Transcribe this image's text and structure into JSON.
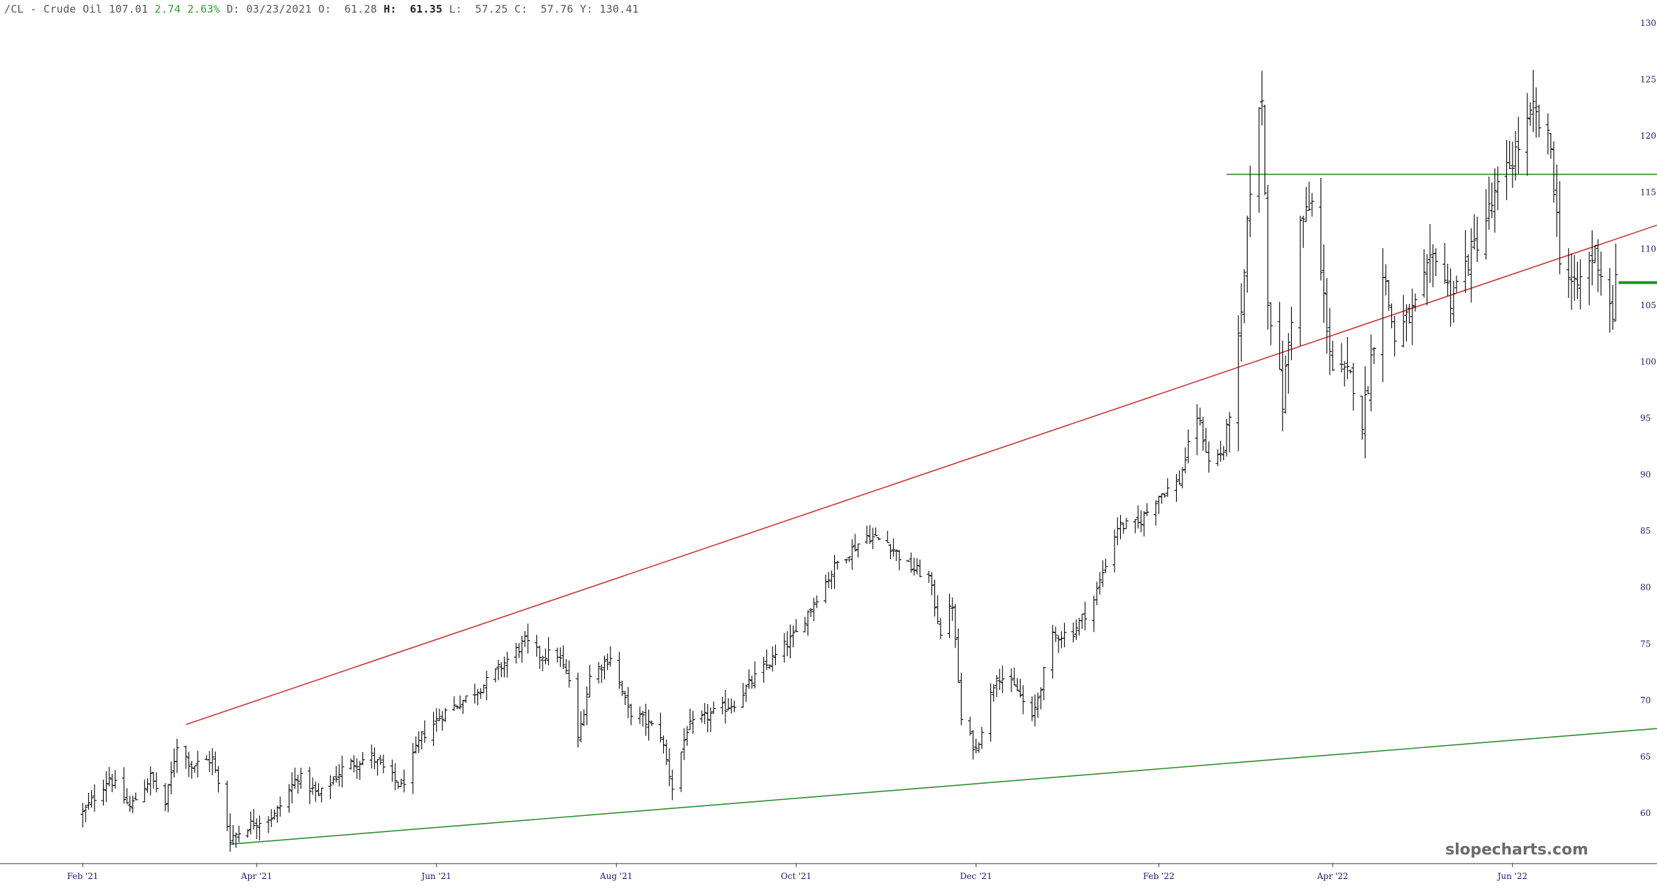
{
  "header": {
    "symbol": "/CL - Crude Oil",
    "last": "107.01",
    "change": "2.74",
    "change_pct": "2.63%",
    "date_label": "D:",
    "date": "03/23/2021",
    "open_label": "O:",
    "open": "61.28",
    "high_label": "H:",
    "high": "61.35",
    "low_label": "L:",
    "low": "57.25",
    "close_label": "C:",
    "close": "57.76",
    "y_label": "Y:",
    "y_value": "130.41"
  },
  "watermark": "slopecharts.com",
  "colors": {
    "bars": "#000000",
    "upper_trendline": "#cc3333",
    "lower_trendline": "#2e8b2e",
    "resistance_line": "#2e8b2e",
    "current_price_marker": "#1f8f1f",
    "axis_text": "#1a1a6e",
    "change_positive": "#2e9e2e"
  },
  "chart_data": {
    "type": "ohlc",
    "grid": false,
    "y_axis": {
      "position": "right",
      "ylim": [
        57.2,
        131.5
      ],
      "ticks": [
        60,
        65,
        70,
        75,
        80,
        85,
        90,
        95,
        100,
        105,
        110,
        115,
        120,
        125,
        130
      ]
    },
    "x_axis": {
      "tick_labels": [
        "Feb '21",
        "Apr '21",
        "Jun '21",
        "Aug '21",
        "Oct '21",
        "Dec '21",
        "Feb '22",
        "Apr '22",
        "Jun '22"
      ],
      "tick_dates": [
        "2021-02-01",
        "2021-04-01",
        "2021-06-01",
        "2021-08-01",
        "2021-10-01",
        "2021-12-01",
        "2022-02-01",
        "2022-04-01",
        "2022-06-01"
      ],
      "range": [
        "2021-02-01",
        "2022-07-20"
      ]
    },
    "price_path": [
      [
        "2021-02-01",
        60.0
      ],
      [
        "2021-02-10",
        63.2
      ],
      [
        "2021-02-17",
        60.5
      ],
      [
        "2021-02-24",
        63.2
      ],
      [
        "2021-03-01",
        60.8
      ],
      [
        "2021-03-05",
        66.1
      ],
      [
        "2021-03-10",
        64.2
      ],
      [
        "2021-03-17",
        64.8
      ],
      [
        "2021-03-23",
        57.8
      ],
      [
        "2021-03-31",
        59.2
      ],
      [
        "2021-04-07",
        59.8
      ],
      [
        "2021-04-15",
        63.3
      ],
      [
        "2021-04-22",
        61.5
      ],
      [
        "2021-05-01",
        64.2
      ],
      [
        "2021-05-10",
        65.0
      ],
      [
        "2021-05-20",
        62.3
      ],
      [
        "2021-05-27",
        66.8
      ],
      [
        "2021-06-03",
        68.8
      ],
      [
        "2021-06-10",
        70.0
      ],
      [
        "2021-06-18",
        71.6
      ],
      [
        "2021-06-25",
        73.6
      ],
      [
        "2021-07-01",
        75.2
      ],
      [
        "2021-07-06",
        74.0
      ],
      [
        "2021-07-12",
        74.1
      ],
      [
        "2021-07-16",
        71.8
      ],
      [
        "2021-07-19",
        66.4
      ],
      [
        "2021-07-23",
        72.1
      ],
      [
        "2021-07-30",
        73.9
      ],
      [
        "2021-08-05",
        69.1
      ],
      [
        "2021-08-10",
        68.3
      ],
      [
        "2021-08-16",
        67.0
      ],
      [
        "2021-08-20",
        62.3
      ],
      [
        "2021-08-25",
        67.5
      ],
      [
        "2021-09-01",
        68.6
      ],
      [
        "2021-09-10",
        69.8
      ],
      [
        "2021-09-17",
        72.0
      ],
      [
        "2021-09-24",
        73.9
      ],
      [
        "2021-10-01",
        75.9
      ],
      [
        "2021-10-08",
        79.2
      ],
      [
        "2021-10-15",
        82.2
      ],
      [
        "2021-10-25",
        84.6
      ],
      [
        "2021-11-01",
        84.0
      ],
      [
        "2021-11-08",
        81.9
      ],
      [
        "2021-11-15",
        80.9
      ],
      [
        "2021-11-19",
        76.1
      ],
      [
        "2021-11-23",
        78.5
      ],
      [
        "2021-11-26",
        68.2
      ],
      [
        "2021-12-01",
        65.6
      ],
      [
        "2021-12-08",
        72.4
      ],
      [
        "2021-12-15",
        70.9
      ],
      [
        "2021-12-20",
        68.2
      ],
      [
        "2021-12-27",
        75.6
      ],
      [
        "2022-01-03",
        76.1
      ],
      [
        "2022-01-10",
        78.9
      ],
      [
        "2022-01-18",
        85.4
      ],
      [
        "2022-01-25",
        85.6
      ],
      [
        "2022-02-01",
        88.2
      ],
      [
        "2022-02-08",
        89.4
      ],
      [
        "2022-02-14",
        95.5
      ],
      [
        "2022-02-18",
        91.1
      ],
      [
        "2022-02-23",
        92.1
      ],
      [
        "2022-03-01",
        103.4
      ],
      [
        "2022-03-04",
        115.7
      ],
      [
        "2022-03-08",
        123.7
      ],
      [
        "2022-03-10",
        106.0
      ],
      [
        "2022-03-15",
        96.4
      ],
      [
        "2022-03-21",
        112.1
      ],
      [
        "2022-03-25",
        113.9
      ],
      [
        "2022-04-01",
        99.3
      ],
      [
        "2022-04-08",
        98.3
      ],
      [
        "2022-04-11",
        94.3
      ],
      [
        "2022-04-18",
        108.2
      ],
      [
        "2022-04-22",
        102.1
      ],
      [
        "2022-04-29",
        104.7
      ],
      [
        "2022-05-06",
        109.8
      ],
      [
        "2022-05-11",
        105.7
      ],
      [
        "2022-05-18",
        109.6
      ],
      [
        "2022-05-27",
        115.1
      ],
      [
        "2022-06-08",
        122.1
      ],
      [
        "2022-06-14",
        118.9
      ],
      [
        "2022-06-17",
        109.6
      ],
      [
        "2022-06-22",
        106.2
      ],
      [
        "2022-06-29",
        109.8
      ],
      [
        "2022-07-05",
        104.3
      ],
      [
        "2022-07-06",
        107.0
      ]
    ],
    "trendlines": [
      {
        "name": "upper",
        "from": [
          "2021-03-08",
          67.85
        ],
        "to": [
          "2022-07-20",
          112.1
        ]
      },
      {
        "name": "lower",
        "from": [
          "2021-03-23",
          57.25
        ],
        "to": [
          "2022-07-20",
          67.5
        ]
      },
      {
        "name": "resistance",
        "from": [
          "2022-02-24",
          116.6
        ],
        "to": [
          "2022-07-20",
          116.6
        ]
      },
      {
        "name": "current-price",
        "from": [
          "2022-07-07",
          107.01
        ],
        "to": [
          "2022-07-20",
          107.01
        ]
      }
    ],
    "last_bar": {
      "date": "2021-03-23",
      "open": 61.28,
      "high": 61.35,
      "low": 57.25,
      "close": 57.76
    }
  }
}
